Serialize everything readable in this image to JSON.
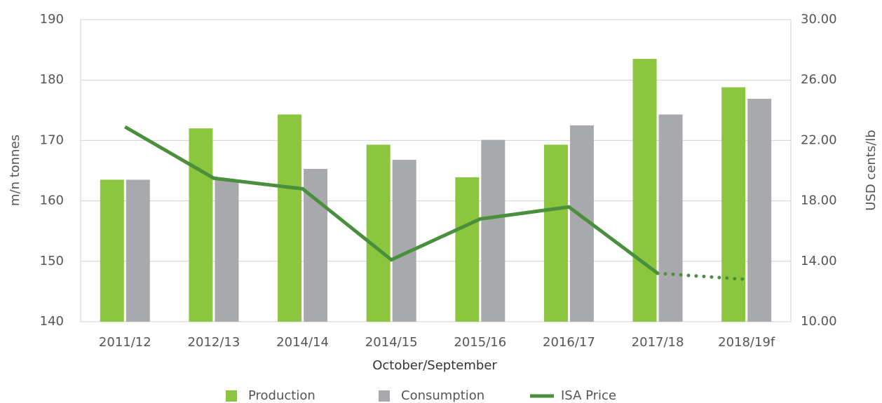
{
  "chart_data": {
    "type": "bar",
    "x_label": "October/September",
    "y_label": "m/n tonnes",
    "y2_label": "USD cents/lb",
    "categories": [
      "2011/12",
      "2012/13",
      "2014/14",
      "2014/15",
      "2015/16",
      "2016/17",
      "2017/18",
      "2018/19f"
    ],
    "series": [
      {
        "name": "Production",
        "color": "#8cc63f",
        "type": "bar",
        "values": [
          163.5,
          172,
          174.3,
          169.3,
          163.9,
          169.3,
          183.5,
          178.8
        ]
      },
      {
        "name": "Consumption",
        "color": "#a7a9ac",
        "type": "bar",
        "values": [
          163.5,
          163.5,
          165.3,
          166.8,
          170.1,
          172.5,
          174.3,
          176.9
        ]
      },
      {
        "name": "ISA Price",
        "color": "#4a8f3c",
        "type": "line",
        "axis": "y2",
        "dotted_from": 6,
        "values": [
          22.9,
          19.5,
          18.8,
          14.1,
          16.8,
          17.6,
          13.2,
          12.8
        ]
      }
    ],
    "ylim": [
      140,
      190
    ],
    "yticks": [
      140,
      150,
      160,
      170,
      180,
      190
    ],
    "y2lim": [
      10,
      30
    ],
    "y2ticks": [
      {
        "value": 10,
        "label": "10.00"
      },
      {
        "value": 14,
        "label": "14.00"
      },
      {
        "value": 18,
        "label": "18.00"
      },
      {
        "value": 22,
        "label": "22.00"
      },
      {
        "value": 26,
        "label": "26.00"
      },
      {
        "value": 30,
        "label": "30.00"
      }
    ],
    "grid": true,
    "legend": "bottom"
  }
}
